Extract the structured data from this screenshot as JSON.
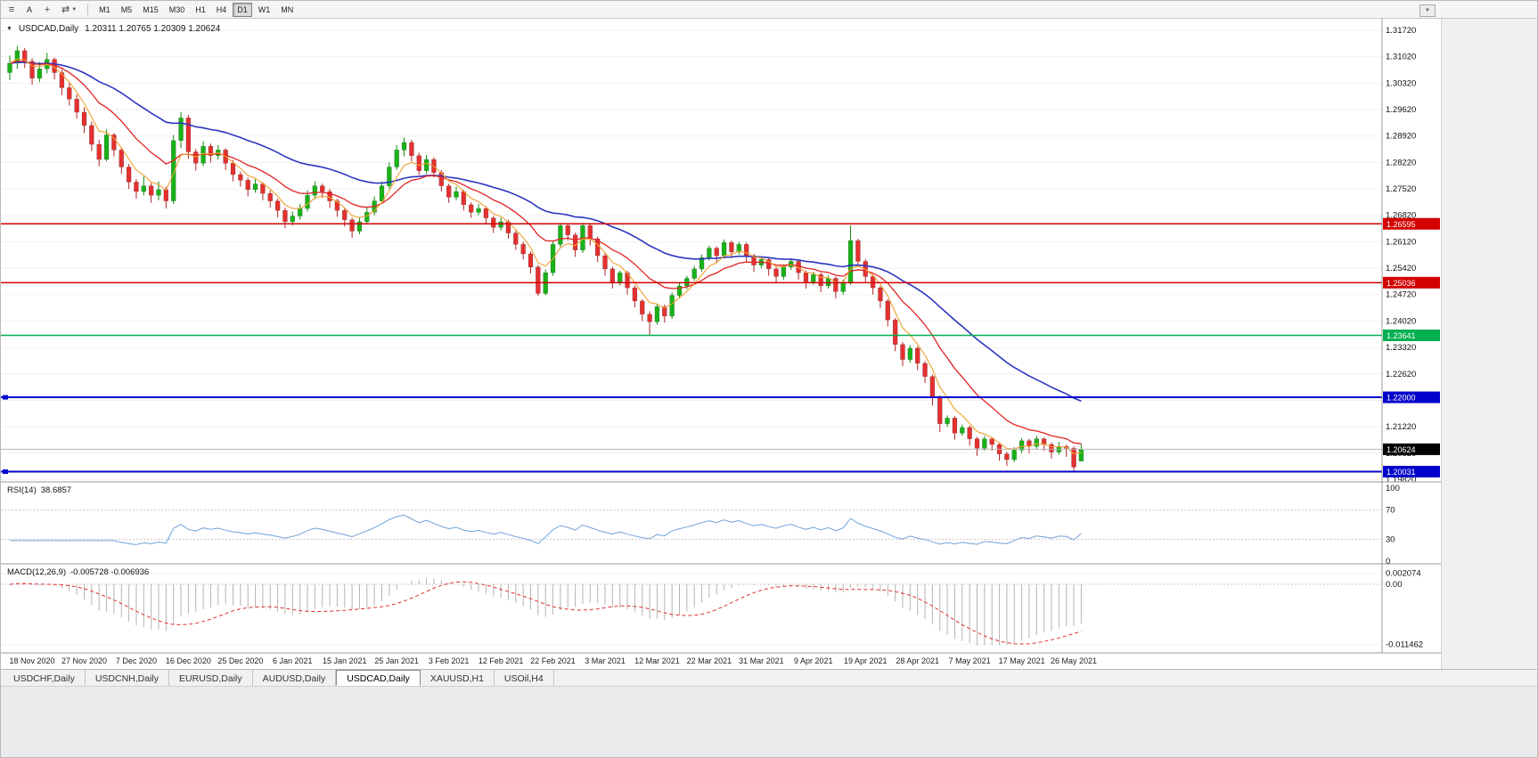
{
  "icons": {
    "menu": "≡",
    "cursor": "A",
    "crosshair": "+",
    "shift": "⇄",
    "caret": "▼",
    "collapse": "▼"
  },
  "toolbar": {
    "timeframes": [
      "M1",
      "M5",
      "M15",
      "M30",
      "H1",
      "H4",
      "D1",
      "W1",
      "MN"
    ],
    "active_timeframe": "D1"
  },
  "chart": {
    "title": "USDCAD,Daily",
    "ohlc_text": "1.20311 1.20765 1.20309 1.20624"
  },
  "tabs": {
    "items": [
      {
        "label": "USDCHF,Daily"
      },
      {
        "label": "USDCNH,Daily"
      },
      {
        "label": "EURUSD,Daily"
      },
      {
        "label": "AUDUSD,Daily"
      },
      {
        "label": "USDCAD,Daily"
      },
      {
        "label": "XAUUSD,H1"
      },
      {
        "label": "USOil,H4"
      }
    ],
    "active": "USDCAD,Daily"
  },
  "chart_data": {
    "type": "candlestick",
    "symbol": "USDCAD",
    "timeframe": "Daily",
    "ylim": [
      1.1976,
      1.3198
    ],
    "price_axis": {
      "ticks": [
        "1.31720",
        "1.31020",
        "1.30320",
        "1.29620",
        "1.28920",
        "1.28220",
        "1.27520",
        "1.26820",
        "1.26120",
        "1.25420",
        "1.24720",
        "1.24020",
        "1.23320",
        "1.22620",
        "1.21920",
        "1.21220",
        "1.20520",
        "1.19820"
      ]
    },
    "x_labels": [
      "18 Nov 2020",
      "27 Nov 2020",
      "7 Dec 2020",
      "16 Dec 2020",
      "25 Dec 2020",
      "6 Jan 2021",
      "15 Jan 2021",
      "25 Jan 2021",
      "3 Feb 2021",
      "12 Feb 2021",
      "22 Feb 2021",
      "3 Mar 2021",
      "12 Mar 2021",
      "22 Mar 2021",
      "31 Mar 2021",
      "9 Apr 2021",
      "19 Apr 2021",
      "28 Apr 2021",
      "7 May 2021",
      "17 May 2021",
      "26 May 2021"
    ],
    "x_label_indices": [
      3,
      10,
      17,
      24,
      31,
      38,
      45,
      52,
      59,
      66,
      73,
      80,
      87,
      94,
      101,
      108,
      115,
      122,
      129,
      136,
      143
    ],
    "colors": {
      "up": "#18b218",
      "down": "#e53030",
      "up_wick": "#0e8a0e",
      "down_wick": "#b22626"
    },
    "candles": [
      [
        1.306,
        1.3105,
        1.304,
        1.3085
      ],
      [
        1.3085,
        1.313,
        1.307,
        1.3118
      ],
      [
        1.3118,
        1.3125,
        1.3072,
        1.309
      ],
      [
        1.309,
        1.3098,
        1.3028,
        1.3045
      ],
      [
        1.3045,
        1.3088,
        1.3035,
        1.307
      ],
      [
        1.307,
        1.3112,
        1.3058,
        1.3095
      ],
      [
        1.3095,
        1.31,
        1.3042,
        1.306
      ],
      [
        1.306,
        1.3068,
        1.3,
        1.302
      ],
      [
        1.302,
        1.3035,
        1.2972,
        1.299
      ],
      [
        1.299,
        1.3002,
        1.2938,
        1.2955
      ],
      [
        1.2955,
        1.2968,
        1.29,
        1.292
      ],
      [
        1.292,
        1.293,
        1.2852,
        1.287
      ],
      [
        1.287,
        1.2882,
        1.2812,
        1.283
      ],
      [
        1.283,
        1.291,
        1.2825,
        1.2895
      ],
      [
        1.2895,
        1.29,
        1.2838,
        1.2855
      ],
      [
        1.2855,
        1.2862,
        1.2792,
        1.281
      ],
      [
        1.281,
        1.2818,
        1.2752,
        1.277
      ],
      [
        1.277,
        1.2778,
        1.2726,
        1.2745
      ],
      [
        1.2745,
        1.2785,
        1.2735,
        1.276
      ],
      [
        1.276,
        1.2768,
        1.2715,
        1.2735
      ],
      [
        1.2735,
        1.2772,
        1.2722,
        1.275
      ],
      [
        1.275,
        1.2758,
        1.27,
        1.272
      ],
      [
        1.272,
        1.2895,
        1.2712,
        1.288
      ],
      [
        1.288,
        1.2955,
        1.286,
        1.294
      ],
      [
        1.294,
        1.2948,
        1.2832,
        1.285
      ],
      [
        1.285,
        1.2858,
        1.28,
        1.282
      ],
      [
        1.282,
        1.2878,
        1.2812,
        1.2865
      ],
      [
        1.2865,
        1.2872,
        1.2822,
        1.284
      ],
      [
        1.284,
        1.2868,
        1.283,
        1.2855
      ],
      [
        1.2855,
        1.286,
        1.2802,
        1.282
      ],
      [
        1.282,
        1.2828,
        1.2772,
        1.279
      ],
      [
        1.279,
        1.2798,
        1.2758,
        1.2775
      ],
      [
        1.2775,
        1.2782,
        1.2732,
        1.275
      ],
      [
        1.275,
        1.2778,
        1.2742,
        1.2765
      ],
      [
        1.2765,
        1.277,
        1.2722,
        1.274
      ],
      [
        1.274,
        1.2748,
        1.2702,
        1.272
      ],
      [
        1.272,
        1.2726,
        1.2676,
        1.2695
      ],
      [
        1.2695,
        1.2702,
        1.2648,
        1.2665
      ],
      [
        1.2665,
        1.2692,
        1.2655,
        1.268
      ],
      [
        1.268,
        1.2712,
        1.267,
        1.27
      ],
      [
        1.27,
        1.2748,
        1.2692,
        1.2735
      ],
      [
        1.2735,
        1.2772,
        1.2725,
        1.276
      ],
      [
        1.276,
        1.2766,
        1.2728,
        1.2745
      ],
      [
        1.2745,
        1.2752,
        1.2702,
        1.272
      ],
      [
        1.272,
        1.2726,
        1.2678,
        1.2695
      ],
      [
        1.2695,
        1.27,
        1.2652,
        1.267
      ],
      [
        1.267,
        1.2676,
        1.2622,
        1.264
      ],
      [
        1.264,
        1.2678,
        1.2632,
        1.2665
      ],
      [
        1.2665,
        1.2702,
        1.2658,
        1.269
      ],
      [
        1.269,
        1.2732,
        1.2682,
        1.272
      ],
      [
        1.272,
        1.2772,
        1.2712,
        1.276
      ],
      [
        1.276,
        1.2822,
        1.2752,
        1.281
      ],
      [
        1.281,
        1.2868,
        1.2802,
        1.2855
      ],
      [
        1.2855,
        1.2888,
        1.2838,
        1.2875
      ],
      [
        1.2875,
        1.2882,
        1.2825,
        1.284
      ],
      [
        1.284,
        1.2848,
        1.2788,
        1.28
      ],
      [
        1.28,
        1.2842,
        1.2792,
        1.283
      ],
      [
        1.283,
        1.2836,
        1.2782,
        1.2795
      ],
      [
        1.2795,
        1.2802,
        1.2745,
        1.276
      ],
      [
        1.276,
        1.2766,
        1.2715,
        1.273
      ],
      [
        1.273,
        1.2758,
        1.2722,
        1.2745
      ],
      [
        1.2745,
        1.275,
        1.2695,
        1.271
      ],
      [
        1.271,
        1.2716,
        1.2675,
        1.269
      ],
      [
        1.269,
        1.2712,
        1.2682,
        1.27
      ],
      [
        1.27,
        1.2706,
        1.266,
        1.2675
      ],
      [
        1.2675,
        1.268,
        1.2635,
        1.265
      ],
      [
        1.265,
        1.2676,
        1.2642,
        1.2665
      ],
      [
        1.2665,
        1.267,
        1.262,
        1.2635
      ],
      [
        1.2635,
        1.2642,
        1.259,
        1.2605
      ],
      [
        1.2605,
        1.2612,
        1.2565,
        1.258
      ],
      [
        1.258,
        1.2586,
        1.2528,
        1.2545
      ],
      [
        1.2545,
        1.255,
        1.2468,
        1.2475
      ],
      [
        1.2475,
        1.2538,
        1.247,
        1.253
      ],
      [
        1.253,
        1.2612,
        1.2522,
        1.2605
      ],
      [
        1.2605,
        1.2662,
        1.2598,
        1.2655
      ],
      [
        1.2655,
        1.266,
        1.2615,
        1.263
      ],
      [
        1.263,
        1.2636,
        1.2572,
        1.259
      ],
      [
        1.259,
        1.2662,
        1.2582,
        1.2655
      ],
      [
        1.2655,
        1.266,
        1.2602,
        1.262
      ],
      [
        1.262,
        1.2626,
        1.2558,
        1.2575
      ],
      [
        1.2575,
        1.2582,
        1.2522,
        1.254
      ],
      [
        1.254,
        1.2546,
        1.2488,
        1.2505
      ],
      [
        1.2505,
        1.2536,
        1.2496,
        1.253
      ],
      [
        1.253,
        1.2535,
        1.2472,
        1.249
      ],
      [
        1.249,
        1.2496,
        1.2438,
        1.2455
      ],
      [
        1.2455,
        1.246,
        1.2402,
        1.242
      ],
      [
        1.242,
        1.2428,
        1.2365,
        1.24
      ],
      [
        1.24,
        1.2448,
        1.2392,
        1.244
      ],
      [
        1.244,
        1.2446,
        1.2398,
        1.2415
      ],
      [
        1.2415,
        1.2478,
        1.2408,
        1.247
      ],
      [
        1.247,
        1.2502,
        1.2462,
        1.2495
      ],
      [
        1.2495,
        1.2522,
        1.2486,
        1.2515
      ],
      [
        1.2515,
        1.2548,
        1.2508,
        1.254
      ],
      [
        1.254,
        1.2578,
        1.2532,
        1.257
      ],
      [
        1.257,
        1.2602,
        1.2562,
        1.2595
      ],
      [
        1.2595,
        1.26,
        1.2558,
        1.2575
      ],
      [
        1.2575,
        1.2618,
        1.2568,
        1.261
      ],
      [
        1.261,
        1.2615,
        1.2568,
        1.2585
      ],
      [
        1.2585,
        1.2612,
        1.2578,
        1.2605
      ],
      [
        1.2605,
        1.261,
        1.2558,
        1.2575
      ],
      [
        1.2575,
        1.258,
        1.2532,
        1.255
      ],
      [
        1.255,
        1.2572,
        1.2542,
        1.2565
      ],
      [
        1.2565,
        1.257,
        1.2522,
        1.254
      ],
      [
        1.254,
        1.2545,
        1.2502,
        1.252
      ],
      [
        1.252,
        1.2552,
        1.2512,
        1.2545
      ],
      [
        1.2545,
        1.2568,
        1.2538,
        1.256
      ],
      [
        1.256,
        1.2565,
        1.2512,
        1.253
      ],
      [
        1.253,
        1.2536,
        1.2488,
        1.2505
      ],
      [
        1.2505,
        1.2532,
        1.2498,
        1.2525
      ],
      [
        1.2525,
        1.253,
        1.2478,
        1.2495
      ],
      [
        1.2495,
        1.2522,
        1.2488,
        1.2515
      ],
      [
        1.2515,
        1.252,
        1.2462,
        1.248
      ],
      [
        1.248,
        1.2512,
        1.2472,
        1.2505
      ],
      [
        1.2505,
        1.2655,
        1.2498,
        1.2615
      ],
      [
        1.2615,
        1.262,
        1.2545,
        1.256
      ],
      [
        1.256,
        1.2566,
        1.2502,
        1.252
      ],
      [
        1.252,
        1.2526,
        1.2472,
        1.249
      ],
      [
        1.249,
        1.2495,
        1.2436,
        1.2455
      ],
      [
        1.2455,
        1.246,
        1.2388,
        1.2405
      ],
      [
        1.2405,
        1.241,
        1.2322,
        1.234
      ],
      [
        1.234,
        1.2346,
        1.2282,
        1.23
      ],
      [
        1.23,
        1.2338,
        1.2292,
        1.233
      ],
      [
        1.233,
        1.2335,
        1.2272,
        1.229
      ],
      [
        1.229,
        1.2296,
        1.2238,
        1.2255
      ],
      [
        1.2255,
        1.226,
        1.2178,
        1.22
      ],
      [
        1.22,
        1.2205,
        1.2108,
        1.213
      ],
      [
        1.213,
        1.2152,
        1.2122,
        1.2145
      ],
      [
        1.2145,
        1.215,
        1.2088,
        1.2105
      ],
      [
        1.2105,
        1.2128,
        1.2098,
        1.212
      ],
      [
        1.212,
        1.2125,
        1.2072,
        1.209
      ],
      [
        1.209,
        1.2095,
        1.2045,
        1.2065
      ],
      [
        1.2065,
        1.2098,
        1.2058,
        1.209
      ],
      [
        1.209,
        1.2094,
        1.2058,
        1.2075
      ],
      [
        1.2075,
        1.208,
        1.2032,
        1.205
      ],
      [
        1.205,
        1.2056,
        1.2018,
        1.2035
      ],
      [
        1.2035,
        1.2068,
        1.2028,
        1.206
      ],
      [
        1.206,
        1.2092,
        1.2052,
        1.2085
      ],
      [
        1.2085,
        1.209,
        1.2052,
        1.207
      ],
      [
        1.207,
        1.2098,
        1.2062,
        1.209
      ],
      [
        1.209,
        1.2094,
        1.2058,
        1.2075
      ],
      [
        1.2075,
        1.208,
        1.2038,
        1.2055
      ],
      [
        1.2055,
        1.2082,
        1.2048,
        1.207
      ],
      [
        1.207,
        1.2075,
        1.2042,
        1.2065
      ],
      [
        1.2065,
        1.207,
        1.2003,
        1.2015
      ],
      [
        1.20311,
        1.20765,
        1.20309,
        1.20624
      ]
    ],
    "moving_averages": [
      {
        "name": "slow",
        "period": 34,
        "color": "#2b35c0",
        "width": 1.6
      },
      {
        "name": "medium",
        "period": 13,
        "color": "#e02424",
        "width": 1.3
      },
      {
        "name": "fast",
        "period": 5,
        "color": "#f0a030",
        "width": 1.1
      }
    ],
    "hlines": [
      {
        "label": "1.26595",
        "value": 1.26595,
        "color": "#d40000",
        "width": 1.5
      },
      {
        "label": "1.25036",
        "value": 1.25036,
        "color": "#d40000",
        "width": 1.5
      },
      {
        "label": "1.23641",
        "value": 1.23641,
        "color": "#00b050",
        "width": 1.5
      },
      {
        "label": "1.22000",
        "value": 1.22,
        "color": "#0000cc",
        "width": 2
      },
      {
        "label": "1.20031",
        "value": 1.20031,
        "color": "#0000cc",
        "width": 2
      }
    ],
    "current_price": {
      "label": "1.20624",
      "value": 1.20624,
      "badge_color": "#000000",
      "line_color": "#b5b5b5"
    },
    "rsi": {
      "label": "RSI(14)",
      "value": "38.6857",
      "period": 14,
      "levels": [
        100,
        70,
        30,
        0
      ],
      "color": "#6fa3d8"
    },
    "macd": {
      "label": "MACD(12,26,9)",
      "values": "-0.005728 -0.006936",
      "fast": 12,
      "slow": 26,
      "signal": 9,
      "axis_labels": [
        "0.002074",
        "0.00",
        "-0.011462"
      ],
      "hist_color": "#b4b4b4",
      "signal_color": "#e03030"
    }
  }
}
